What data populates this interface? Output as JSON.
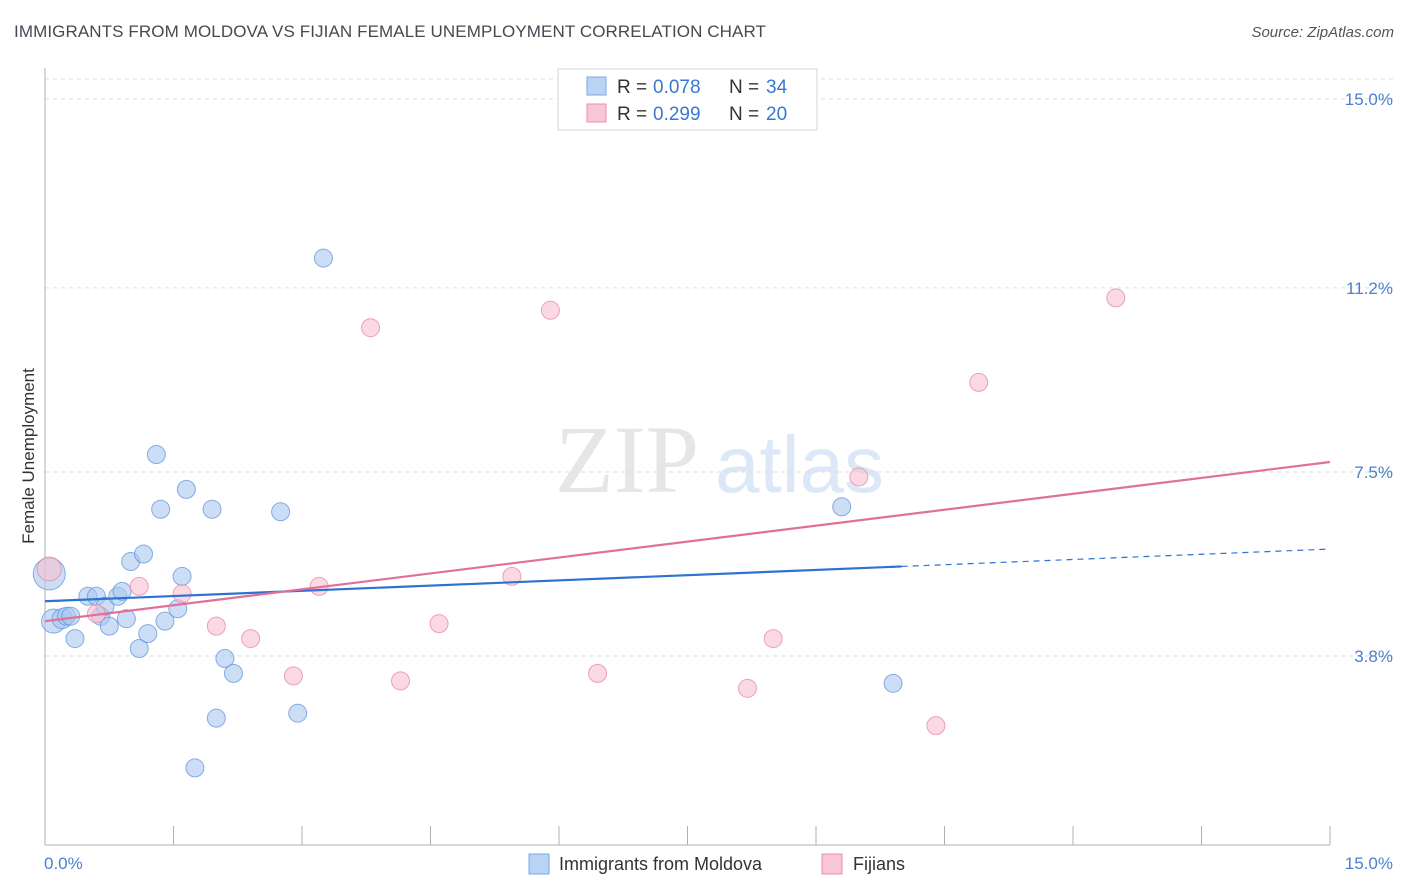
{
  "header": {
    "title": "IMMIGRANTS FROM MOLDOVA VS FIJIAN FEMALE UNEMPLOYMENT CORRELATION CHART",
    "source": "Source: ZipAtlas.com"
  },
  "watermark": {
    "zip": "ZIP",
    "atlas": "atlas"
  },
  "legend": {
    "r_label": "R = ",
    "n_label": "N = ",
    "rows": [
      {
        "r": "0.078",
        "n": "34"
      },
      {
        "r": "0.299",
        "n": "20"
      }
    ]
  },
  "bottom_legend": {
    "items": [
      {
        "label": "Immigrants from Moldova"
      },
      {
        "label": "Fijians"
      }
    ]
  },
  "chart_data": {
    "type": "scatter",
    "title": "IMMIGRANTS FROM MOLDOVA VS FIJIAN FEMALE UNEMPLOYMENT CORRELATION CHART",
    "xlabel": "",
    "ylabel": "Female Unemployment",
    "xlim": [
      0,
      15
    ],
    "ylim": [
      0,
      15.4
    ],
    "x_tick_labels": [
      "0.0%",
      "15.0%"
    ],
    "y_ticks": [
      3.8,
      7.5,
      11.2,
      15.0
    ],
    "y_tick_labels": [
      "3.8%",
      "7.5%",
      "11.2%",
      "15.0%"
    ],
    "grid": true,
    "series": [
      {
        "name": "Immigrants from Moldova",
        "color": "#a9c8f0",
        "stroke": "#5a8fd8",
        "trend_color": "#2e72d2",
        "trend": {
          "x0": 0,
          "y0": 4.9,
          "x1": 10.0,
          "y1": 5.6,
          "x_ext": 15,
          "y_ext": 5.95
        },
        "points": [
          [
            0.1,
            4.5,
            12
          ],
          [
            0.2,
            4.55,
            10
          ],
          [
            0.25,
            4.6,
            9
          ],
          [
            0.35,
            4.15,
            9
          ],
          [
            0.3,
            4.6,
            9
          ],
          [
            0.5,
            5.0,
            9
          ],
          [
            0.6,
            5.0,
            9
          ],
          [
            0.65,
            4.6,
            9
          ],
          [
            0.7,
            4.8,
            9
          ],
          [
            0.75,
            4.4,
            9
          ],
          [
            0.85,
            5.0,
            9
          ],
          [
            0.9,
            5.1,
            9
          ],
          [
            0.95,
            4.55,
            9
          ],
          [
            1.0,
            5.7,
            9
          ],
          [
            1.1,
            3.95,
            9
          ],
          [
            1.15,
            5.85,
            9
          ],
          [
            1.2,
            4.25,
            9
          ],
          [
            1.3,
            7.85,
            9
          ],
          [
            1.35,
            6.75,
            9
          ],
          [
            1.4,
            4.5,
            9
          ],
          [
            1.55,
            4.75,
            9
          ],
          [
            1.6,
            5.4,
            9
          ],
          [
            1.65,
            7.15,
            9
          ],
          [
            1.75,
            1.55,
            9
          ],
          [
            1.95,
            6.75,
            9
          ],
          [
            2.0,
            2.55,
            9
          ],
          [
            2.1,
            3.75,
            9
          ],
          [
            2.2,
            3.45,
            9
          ],
          [
            2.75,
            6.7,
            9
          ],
          [
            2.95,
            2.65,
            9
          ],
          [
            3.25,
            11.8,
            9
          ],
          [
            9.3,
            6.8,
            9
          ],
          [
            9.9,
            3.25,
            9
          ],
          [
            0.05,
            5.45,
            16
          ]
        ]
      },
      {
        "name": "Fijians",
        "color": "#f6bfd0",
        "stroke": "#e57fa2",
        "trend_color": "#e0709a",
        "trend": {
          "x0": 0,
          "y0": 4.5,
          "x1": 15,
          "y1": 7.7
        },
        "points": [
          [
            0.05,
            5.55,
            12
          ],
          [
            0.6,
            4.65,
            9
          ],
          [
            1.1,
            5.2,
            9
          ],
          [
            1.6,
            5.05,
            9
          ],
          [
            2.0,
            4.4,
            9
          ],
          [
            2.4,
            4.15,
            9
          ],
          [
            2.9,
            3.4,
            9
          ],
          [
            3.2,
            5.2,
            9
          ],
          [
            3.8,
            10.4,
            9
          ],
          [
            4.15,
            3.3,
            9
          ],
          [
            4.6,
            4.45,
            9
          ],
          [
            5.45,
            5.4,
            9
          ],
          [
            5.9,
            10.75,
            9
          ],
          [
            6.45,
            3.45,
            9
          ],
          [
            8.2,
            3.15,
            9
          ],
          [
            8.5,
            4.15,
            9
          ],
          [
            9.5,
            7.4,
            9
          ],
          [
            10.4,
            2.4,
            9
          ],
          [
            10.9,
            9.3,
            9
          ],
          [
            12.5,
            11.0,
            9
          ]
        ]
      }
    ]
  }
}
